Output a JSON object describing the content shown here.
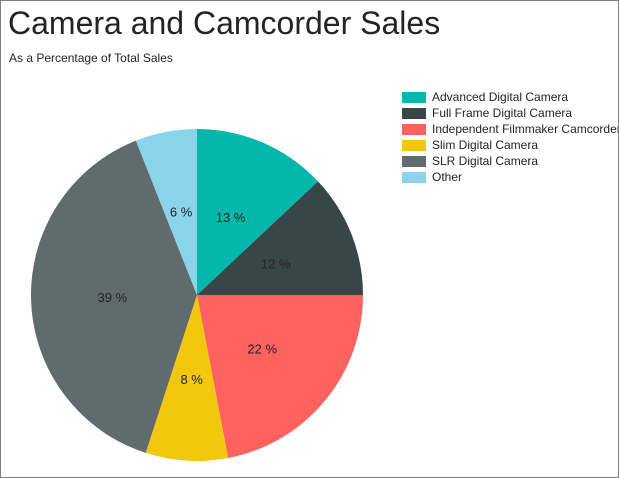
{
  "chart_data": {
    "type": "pie",
    "title": "Camera and Camcorder Sales",
    "subtitle": "As a Percentage of Total Sales",
    "unit": "%",
    "legend_position": "top-right",
    "start_angle_deg": 0,
    "direction": "clockwise",
    "categories": [
      "Advanced Digital Camera",
      "Full Frame Digital Camera",
      "Independent Filmmaker Camcorder",
      "Slim Digital Camera",
      "SLR Digital Camera",
      "Other"
    ],
    "values": [
      13,
      12,
      22,
      8,
      39,
      6
    ],
    "slice_labels": [
      "13 %",
      "12 %",
      "22 %",
      "8 %",
      "39 %",
      "6 %"
    ],
    "series": [
      {
        "name": "Advanced Digital Camera",
        "value": 13,
        "color": "#01B8AA"
      },
      {
        "name": "Full Frame Digital Camera",
        "value": 12,
        "color": "#374649"
      },
      {
        "name": "Independent Filmmaker Camcorder",
        "value": 22,
        "color": "#FD625E"
      },
      {
        "name": "Slim Digital Camera",
        "value": 8,
        "color": "#F2C80F"
      },
      {
        "name": "SLR Digital Camera",
        "value": 39,
        "color": "#5F6B6D"
      },
      {
        "name": "Other",
        "value": 6,
        "color": "#8AD4EB"
      }
    ]
  },
  "colors": {
    "text": "#252423",
    "background": "#FFFFFF",
    "canvas_border": "#7E7E7E"
  }
}
